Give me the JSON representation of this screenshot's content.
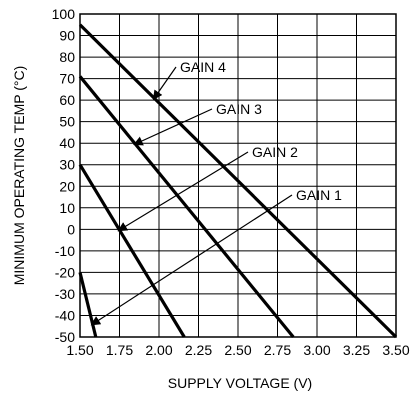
{
  "chart_data": {
    "type": "line",
    "title": "",
    "xlabel": "SUPPLY VOLTAGE (V)",
    "ylabel": "MINIMUM OPERATING TEMP (°C)",
    "xlim": [
      1.5,
      3.5
    ],
    "ylim": [
      -50,
      100
    ],
    "grid": true,
    "x_ticks": [
      "1.50",
      "1.75",
      "2.00",
      "2.25",
      "2.50",
      "2.75",
      "3.00",
      "3.25",
      "3.50"
    ],
    "y_ticks": [
      "100",
      "90",
      "80",
      "70",
      "60",
      "50",
      "40",
      "30",
      "20",
      "10",
      "0",
      "-10",
      "-20",
      "-30",
      "-40",
      "-50"
    ],
    "series": [
      {
        "name": "GAIN 1",
        "x": [
          1.5,
          1.6
        ],
        "y": [
          -20,
          -50
        ]
      },
      {
        "name": "GAIN 2",
        "x": [
          1.5,
          2.16
        ],
        "y": [
          30,
          -50
        ]
      },
      {
        "name": "GAIN 3",
        "x": [
          1.5,
          2.85
        ],
        "y": [
          71,
          -50
        ]
      },
      {
        "name": "GAIN 4",
        "x": [
          1.5,
          3.5
        ],
        "y": [
          95,
          -50
        ]
      }
    ]
  }
}
